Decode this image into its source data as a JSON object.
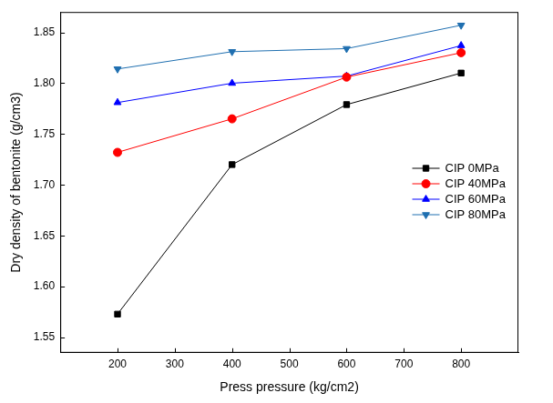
{
  "chart_data": {
    "type": "line",
    "x_label": "Press pressure (kg/cm2)",
    "y_label": "Dry density of bentonite (g/cm3)",
    "x": [
      200,
      400,
      600,
      800
    ],
    "series": [
      {
        "name": "CIP 0MPa",
        "color": "#000000",
        "marker": "square",
        "values": [
          1.573,
          1.72,
          1.779,
          1.81
        ]
      },
      {
        "name": "CIP 40MPa",
        "color": "#ff0000",
        "marker": "circle",
        "values": [
          1.732,
          1.765,
          1.806,
          1.83
        ]
      },
      {
        "name": "CIP 60MPa",
        "color": "#0000ff",
        "marker": "triangle",
        "values": [
          1.781,
          1.8,
          1.807,
          1.837
        ]
      },
      {
        "name": "CIP 80MPa",
        "color": "#1f6fb0",
        "marker": "triangle-down",
        "values": [
          1.814,
          1.831,
          1.834,
          1.857
        ]
      }
    ],
    "xlim": [
      100,
      900
    ],
    "xticks": [
      200,
      300,
      400,
      500,
      600,
      700,
      800
    ],
    "ylim": [
      1.535,
      1.87
    ],
    "yticks": [
      1.55,
      {
        "value": 1.6,
        "label": "1.60"
      },
      1.65,
      {
        "value": 1.7,
        "label": "1.70"
      },
      1.75,
      {
        "value": 1.8,
        "label": "1.80"
      },
      1.85
    ],
    "grid": false,
    "legend": "right"
  }
}
